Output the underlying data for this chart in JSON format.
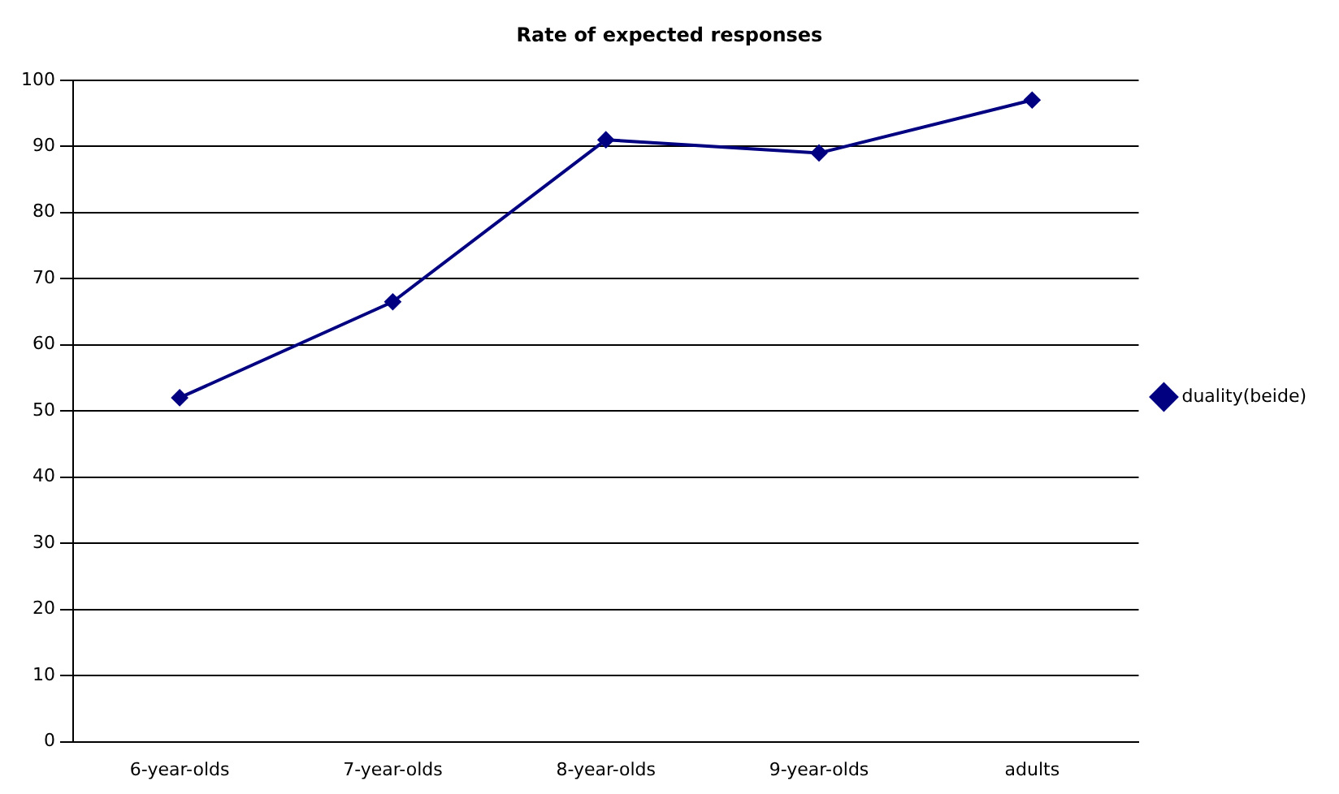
{
  "chart_data": {
    "type": "line",
    "title": "Rate of expected responses",
    "categories": [
      "6-year-olds",
      "7-year-olds",
      "8-year-olds",
      "9-year-olds",
      "adults"
    ],
    "series": [
      {
        "name": "duality(beide)",
        "color": "#000080",
        "values": [
          52,
          66.5,
          91,
          89,
          97
        ]
      }
    ],
    "ylim": [
      0,
      100
    ],
    "yticks": [
      0,
      10,
      20,
      30,
      40,
      50,
      60,
      70,
      80,
      90,
      100
    ],
    "grid": "y",
    "legend": "right",
    "marker": "diamond",
    "line_style": "solid"
  }
}
